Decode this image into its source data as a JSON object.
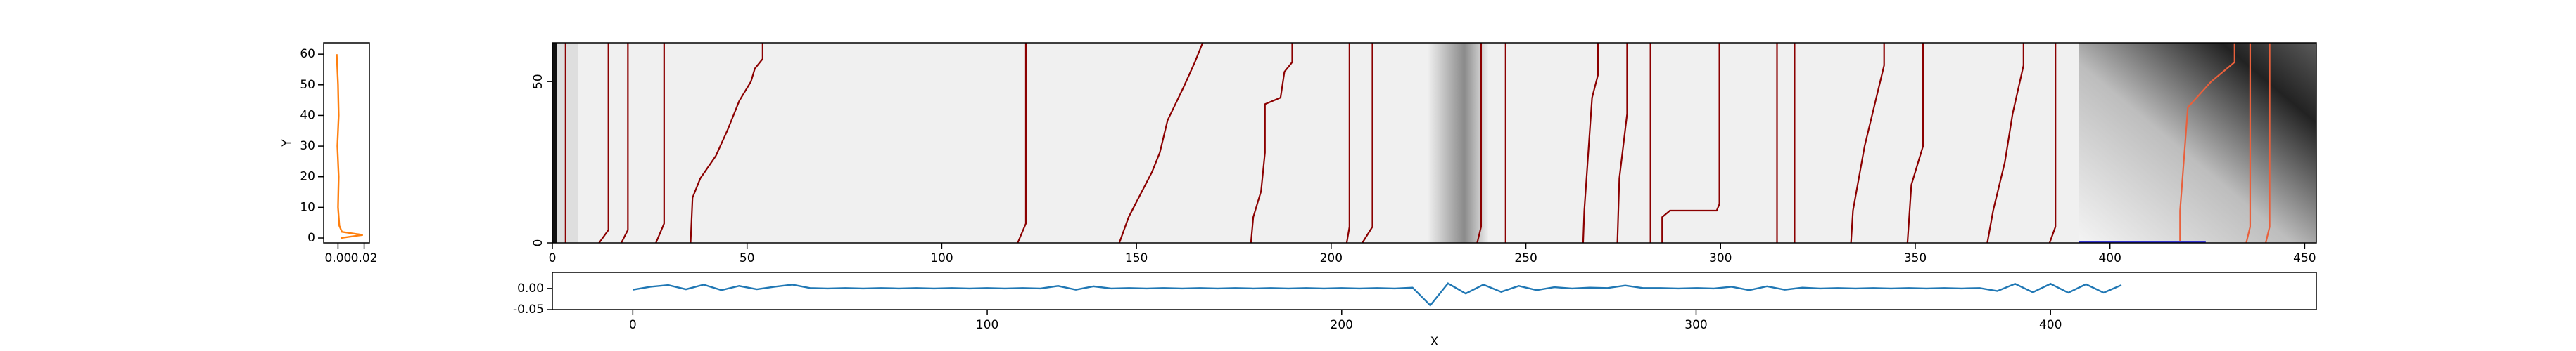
{
  "chart_data": [
    {
      "type": "line",
      "ylabel": "Y",
      "xlim": [
        -0.011,
        0.024
      ],
      "ylim": [
        -1.6,
        63.7
      ],
      "xticks": [
        {
          "value": 0,
          "label": "0.00"
        },
        {
          "value": 0.02,
          "label": "0.02"
        }
      ],
      "yticks": [
        0,
        10,
        20,
        30,
        40,
        50,
        60
      ],
      "series": [
        {
          "color": "#ff7f0e",
          "x": [
            -0.001,
            -0.0005,
            0.0,
            0.0005,
            -0.0005,
            0.0005,
            0.0,
            0.001,
            0.003,
            0.019,
            0.002
          ],
          "y": [
            60,
            55,
            50,
            40,
            30,
            20,
            10,
            4,
            2,
            1,
            0
          ]
        }
      ]
    },
    {
      "type": "heatmap",
      "xlim": [
        0,
        453
      ],
      "ylim": [
        0,
        62
      ],
      "xticks": [
        0,
        50,
        100,
        150,
        200,
        250,
        300,
        350,
        400,
        450
      ],
      "yticks": [
        0,
        50
      ],
      "lines": [
        {
          "color": "#8b0000",
          "x": [
            3.4,
            3.4
          ],
          "y": [
            0,
            62
          ]
        },
        {
          "color": "#8b0000",
          "x": [
            12,
            14.4,
            14.4
          ],
          "y": [
            0,
            4,
            62
          ]
        },
        {
          "color": "#8b0000",
          "x": [
            17.7,
            19.4,
            19.4
          ],
          "y": [
            0,
            4,
            62
          ]
        },
        {
          "color": "#8b0000",
          "x": [
            26.6,
            28.7,
            28.7
          ],
          "y": [
            0,
            6,
            62
          ]
        },
        {
          "color": "#8b0000",
          "x": [
            35.5,
            36,
            38,
            42,
            45,
            48,
            51,
            52,
            54,
            54
          ],
          "y": [
            0,
            14,
            20,
            27,
            35,
            44,
            50,
            54,
            57,
            62
          ]
        },
        {
          "color": "#8b0000",
          "x": [
            119.5,
            121.6,
            121.6
          ],
          "y": [
            0,
            6,
            62
          ]
        },
        {
          "color": "#8b0000",
          "x": [
            145.6,
            148,
            151,
            154,
            156,
            158,
            162,
            165,
            167
          ],
          "y": [
            0,
            8,
            15,
            22,
            28,
            38,
            48,
            56,
            62
          ]
        },
        {
          "color": "#8b0000",
          "x": [
            179.4,
            180,
            182,
            183,
            183,
            187,
            188,
            190,
            190
          ],
          "y": [
            0,
            8,
            16,
            28,
            43,
            45,
            53,
            56,
            62
          ]
        },
        {
          "color": "#8b0000",
          "x": [
            204,
            204.7,
            204.7
          ],
          "y": [
            0,
            5,
            62
          ]
        },
        {
          "color": "#8b0000",
          "x": [
            208,
            210.6,
            210.6
          ],
          "y": [
            0,
            5,
            62
          ]
        },
        {
          "color": "#8b0000",
          "x": [
            237.5,
            238.5,
            238.5
          ],
          "y": [
            0,
            5,
            62
          ]
        },
        {
          "color": "#8b0000",
          "x": [
            244.8,
            244.8
          ],
          "y": [
            0,
            62
          ]
        },
        {
          "color": "#8b0000",
          "x": [
            264.7,
            265,
            267,
            268.5,
            268.5
          ],
          "y": [
            0,
            10,
            45,
            52,
            62
          ]
        },
        {
          "color": "#8b0000",
          "x": [
            273.5,
            274,
            276,
            276
          ],
          "y": [
            0,
            20,
            40,
            62
          ]
        },
        {
          "color": "#8b0000",
          "x": [
            282,
            282
          ],
          "y": [
            0,
            62
          ]
        },
        {
          "color": "#8b0000",
          "x": [
            285,
            285,
            287,
            299,
            299.7,
            299.7
          ],
          "y": [
            0,
            8,
            10,
            10,
            12,
            62
          ]
        },
        {
          "color": "#8b0000",
          "x": [
            314.5,
            314.5
          ],
          "y": [
            0,
            62
          ]
        },
        {
          "color": "#8b0000",
          "x": [
            319,
            319
          ],
          "y": [
            0,
            62
          ]
        },
        {
          "color": "#8b0000",
          "x": [
            333.5,
            334,
            337,
            340,
            342,
            342
          ],
          "y": [
            0,
            10,
            30,
            45,
            55,
            62
          ]
        },
        {
          "color": "#8b0000",
          "x": [
            348,
            349,
            352,
            352
          ],
          "y": [
            0,
            18,
            30,
            62
          ]
        },
        {
          "color": "#8b0000",
          "x": [
            368.5,
            370,
            373,
            375,
            377.8,
            377.8
          ],
          "y": [
            0,
            10,
            25,
            40,
            55,
            62
          ]
        },
        {
          "color": "#8b0000",
          "x": [
            384.5,
            386,
            386
          ],
          "y": [
            0,
            5,
            62
          ]
        },
        {
          "color": "#e9603c",
          "x": [
            418,
            418,
            420,
            426,
            432,
            432
          ],
          "y": [
            0,
            10,
            42,
            50,
            56,
            62
          ]
        },
        {
          "color": "#e9603c",
          "x": [
            435,
            436,
            436
          ],
          "y": [
            0,
            5,
            62
          ]
        },
        {
          "color": "#e9603c",
          "x": [
            440,
            441,
            441
          ],
          "y": [
            0,
            5,
            62
          ]
        },
        {
          "color": "#3333cc",
          "x": [
            392,
            424.6
          ],
          "y": [
            0.3,
            0.3
          ]
        }
      ]
    },
    {
      "type": "line",
      "xlabel": "X",
      "xlim": [
        -22.7,
        475
      ],
      "ylim": [
        -0.05,
        0.038
      ],
      "xticks": [
        0,
        100,
        200,
        300,
        400
      ],
      "yticks": [
        {
          "value": 0,
          "label": "0.00"
        },
        {
          "value": -0.05,
          "label": "-0.05"
        }
      ],
      "series": [
        {
          "color": "#1f77b4",
          "x": [
            0,
            5,
            10,
            15,
            20,
            25,
            30,
            35,
            40,
            45,
            50,
            55,
            60,
            65,
            70,
            75,
            80,
            85,
            90,
            95,
            100,
            105,
            110,
            115,
            120,
            125,
            130,
            135,
            140,
            145,
            150,
            155,
            160,
            165,
            170,
            175,
            180,
            185,
            190,
            195,
            200,
            205,
            210,
            215,
            220,
            225,
            230,
            235,
            240,
            245,
            250,
            255,
            260,
            265,
            270,
            275,
            280,
            285,
            290,
            295,
            300,
            305,
            310,
            315,
            320,
            325,
            330,
            335,
            340,
            345,
            350,
            355,
            360,
            365,
            370,
            375,
            380,
            385,
            390,
            395,
            400,
            405,
            410,
            415,
            420
          ],
          "y": [
            -0.003,
            0.004,
            0.008,
            -0.002,
            0.009,
            -0.004,
            0.006,
            -0.002,
            0.004,
            0.009,
            0.001,
            0.0,
            0.001,
            0.0,
            0.001,
            0.0,
            0.001,
            0.0,
            0.001,
            0.0,
            0.001,
            0.0,
            0.001,
            0.0,
            0.006,
            -0.003,
            0.005,
            0.0,
            0.001,
            0.0,
            0.001,
            0.0,
            0.001,
            0.0,
            0.001,
            0.0,
            0.001,
            0.0,
            0.001,
            0.0,
            0.001,
            0.0,
            0.001,
            0.0,
            0.002,
            -0.04,
            0.012,
            -0.012,
            0.009,
            -0.008,
            0.006,
            -0.004,
            0.003,
            0.0,
            0.002,
            0.001,
            0.007,
            0.001,
            0.001,
            0.0,
            0.001,
            0.0,
            0.004,
            -0.004,
            0.005,
            -0.003,
            0.002,
            0.0,
            0.001,
            0.0,
            0.001,
            0.0,
            0.001,
            0.0,
            0.001,
            0.0,
            0.001,
            -0.006,
            0.011,
            -0.009,
            0.011,
            -0.01,
            0.01,
            -0.01,
            0.008
          ]
        }
      ]
    }
  ]
}
